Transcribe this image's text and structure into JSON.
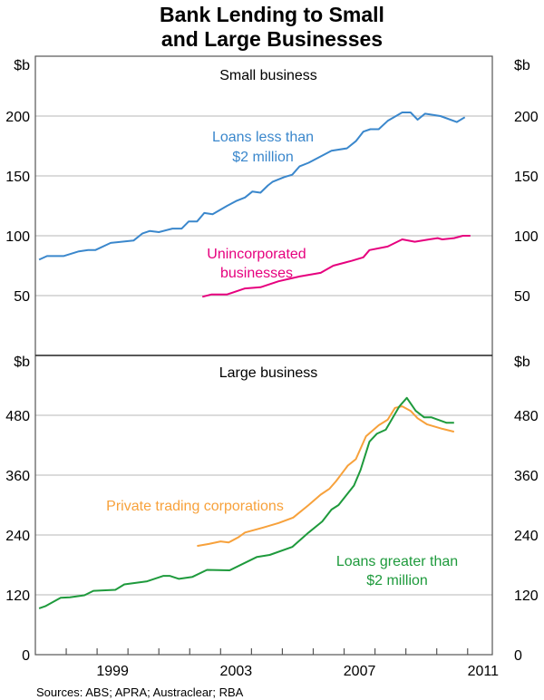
{
  "chart_data": [
    {
      "type": "line",
      "title": "Bank Lending to Small and Large Businesses",
      "panel_title": "Small business",
      "ylabel": "$b",
      "ylim": [
        0,
        250
      ],
      "yticks": [
        50,
        100,
        150,
        200
      ],
      "xlim": [
        1997,
        2011.8
      ],
      "grid": true,
      "series": [
        {
          "name": "Loans less than $2 million",
          "label_lines": [
            "Loans less than",
            "$2 million"
          ],
          "color": "#3a87cc",
          "points": [
            [
              1997.12,
              80
            ],
            [
              1997.38,
              83
            ],
            [
              1997.91,
              83
            ],
            [
              1998.41,
              87
            ],
            [
              1998.71,
              88
            ],
            [
              1998.94,
              88
            ],
            [
              1999.44,
              94
            ],
            [
              2000.18,
              96
            ],
            [
              2000.47,
              102
            ],
            [
              2000.71,
              104
            ],
            [
              2001.0,
              103
            ],
            [
              2001.44,
              106
            ],
            [
              2001.74,
              106
            ],
            [
              2001.97,
              112
            ],
            [
              2002.24,
              112
            ],
            [
              2002.47,
              119
            ],
            [
              2002.74,
              118
            ],
            [
              2003.21,
              125
            ],
            [
              2003.5,
              129
            ],
            [
              2003.79,
              132
            ],
            [
              2004.03,
              137
            ],
            [
              2004.29,
              136
            ],
            [
              2004.53,
              142
            ],
            [
              2004.68,
              145
            ],
            [
              2005.06,
              149
            ],
            [
              2005.32,
              151
            ],
            [
              2005.56,
              158
            ],
            [
              2005.85,
              161
            ],
            [
              2006.59,
              171
            ],
            [
              2007.09,
              173
            ],
            [
              2007.38,
              179
            ],
            [
              2007.62,
              187
            ],
            [
              2007.85,
              189
            ],
            [
              2008.12,
              189
            ],
            [
              2008.41,
              196
            ],
            [
              2008.88,
              203
            ],
            [
              2009.15,
              203
            ],
            [
              2009.38,
              197
            ],
            [
              2009.62,
              202
            ],
            [
              2010.12,
              200
            ],
            [
              2010.65,
              195
            ],
            [
              2010.91,
              199
            ]
          ]
        },
        {
          "name": "Unincorporated businesses",
          "label_lines": [
            "Unincorporated",
            "businesses"
          ],
          "color": "#e6007e",
          "points": [
            [
              2002.41,
              49
            ],
            [
              2002.71,
              51
            ],
            [
              2003.21,
              51
            ],
            [
              2003.79,
              56
            ],
            [
              2004.29,
              57
            ],
            [
              2004.88,
              62
            ],
            [
              2005.56,
              66
            ],
            [
              2006.24,
              69
            ],
            [
              2006.65,
              75
            ],
            [
              2007.24,
              79
            ],
            [
              2007.62,
              82
            ],
            [
              2007.82,
              88
            ],
            [
              2008.41,
              91
            ],
            [
              2008.88,
              97
            ],
            [
              2009.29,
              95
            ],
            [
              2009.76,
              97
            ],
            [
              2010.03,
              98
            ],
            [
              2010.18,
              97
            ],
            [
              2010.56,
              98
            ],
            [
              2010.85,
              100
            ],
            [
              2011.09,
              100
            ]
          ]
        }
      ]
    },
    {
      "type": "line",
      "panel_title": "Large business",
      "ylabel": "$b",
      "ylim": [
        0,
        600
      ],
      "yticks": [
        0,
        120,
        240,
        360,
        480
      ],
      "xlim": [
        1997,
        2011.8
      ],
      "xticklabels": [
        "1999",
        "2003",
        "2007",
        "2011"
      ],
      "xtick_years": [
        1999,
        2003,
        2007,
        2011
      ],
      "grid": true,
      "series": [
        {
          "name": "Private trading corporations",
          "label_lines": [
            "Private trading corporations"
          ],
          "color": "#f7a13b",
          "points": [
            [
              2002.24,
              218
            ],
            [
              2002.62,
              222
            ],
            [
              2003.0,
              227
            ],
            [
              2003.26,
              225
            ],
            [
              2003.59,
              236
            ],
            [
              2003.79,
              245
            ],
            [
              2004.38,
              255
            ],
            [
              2004.88,
              264
            ],
            [
              2005.35,
              275
            ],
            [
              2005.85,
              300
            ],
            [
              2006.24,
              321
            ],
            [
              2006.53,
              333
            ],
            [
              2006.74,
              348
            ],
            [
              2007.12,
              379
            ],
            [
              2007.38,
              392
            ],
            [
              2007.71,
              438
            ],
            [
              2008.12,
              460
            ],
            [
              2008.41,
              471
            ],
            [
              2008.65,
              495
            ],
            [
              2008.88,
              498
            ],
            [
              2009.15,
              489
            ],
            [
              2009.38,
              474
            ],
            [
              2009.68,
              462
            ],
            [
              2010.18,
              453
            ],
            [
              2010.56,
              447
            ]
          ]
        },
        {
          "name": "Loans greater than $2 million",
          "label_lines": [
            "Loans greater than",
            "$2 million"
          ],
          "color": "#1e9a3c",
          "points": [
            [
              1997.12,
              93
            ],
            [
              1997.32,
              97
            ],
            [
              1997.82,
              114
            ],
            [
              1998.12,
              115
            ],
            [
              1998.59,
              119
            ],
            [
              1998.88,
              128
            ],
            [
              1999.59,
              130
            ],
            [
              1999.88,
              141
            ],
            [
              2000.62,
              147
            ],
            [
              2001.15,
              158
            ],
            [
              2001.35,
              158
            ],
            [
              2001.65,
              152
            ],
            [
              2002.09,
              156
            ],
            [
              2002.56,
              170
            ],
            [
              2003.29,
              169
            ],
            [
              2004.18,
              196
            ],
            [
              2004.59,
              200
            ],
            [
              2005.32,
              216
            ],
            [
              2005.85,
              245
            ],
            [
              2006.29,
              267
            ],
            [
              2006.59,
              291
            ],
            [
              2006.82,
              300
            ],
            [
              2007.32,
              339
            ],
            [
              2007.53,
              370
            ],
            [
              2007.82,
              427
            ],
            [
              2008.06,
              443
            ],
            [
              2008.35,
              451
            ],
            [
              2008.79,
              498
            ],
            [
              2009.03,
              515
            ],
            [
              2009.32,
              489
            ],
            [
              2009.59,
              476
            ],
            [
              2009.82,
              476
            ],
            [
              2010.32,
              465
            ],
            [
              2010.56,
              465
            ]
          ]
        }
      ]
    }
  ],
  "title_lines": [
    "Bank Lending to Small",
    "and Large Businesses"
  ],
  "sources": "Sources: ABS; APRA; Austraclear; RBA"
}
